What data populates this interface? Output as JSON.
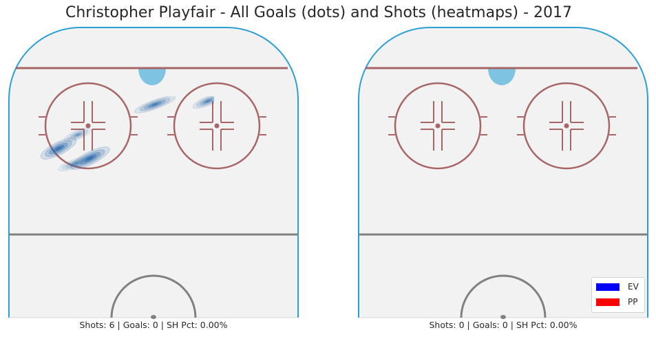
{
  "title": "Christopher Playfair - All Goals (dots) and Shots (heatmaps) - 2017",
  "panels": [
    {
      "caption": "Shots: 6 | Goals: 0 | SH Pct: 0.00%"
    },
    {
      "caption": "Shots: 0 | Goals: 0 | SH Pct: 0.00%"
    }
  ],
  "legend": [
    {
      "label": "EV",
      "color": "#0000ff"
    },
    {
      "label": "PP",
      "color": "#ff0000"
    }
  ],
  "colors": {
    "ice": "#f2f2f2",
    "boards": "#2a9fd6",
    "goal_line": "#a76565",
    "crease": "#7ec4e2",
    "faceoff": "#a76565",
    "center_line": "#808080",
    "heatmap": "#2a6db0"
  },
  "chart_data": {
    "type": "heatmap",
    "title": "Christopher Playfair - All Goals (dots) and Shots (heatmaps) - 2017",
    "panels": [
      {
        "shots": 6,
        "goals": 0,
        "sh_pct": "0.00%",
        "shot_clusters": [
          {
            "x": 72,
            "y": 216,
            "sx": 22,
            "sy": 7,
            "angle": -27,
            "intensity": 1.0
          },
          {
            "x": 118,
            "y": 230,
            "sx": 24,
            "sy": 7,
            "angle": -27,
            "intensity": 1.0
          },
          {
            "x": 212,
            "y": 152,
            "sx": 24,
            "sy": 5,
            "angle": -20,
            "intensity": 0.8
          },
          {
            "x": 289,
            "y": 147,
            "sx": 18,
            "sy": 5,
            "angle": -22,
            "intensity": 0.7
          },
          {
            "x": 100,
            "y": 196,
            "sx": 16,
            "sy": 5,
            "angle": -22,
            "intensity": 0.5
          },
          {
            "x": 96,
            "y": 238,
            "sx": 20,
            "sy": 5,
            "angle": -20,
            "intensity": 0.5
          }
        ],
        "goal_points": []
      },
      {
        "shots": 0,
        "goals": 0,
        "sh_pct": "0.00%",
        "shot_clusters": [],
        "goal_points": []
      }
    ],
    "legend": [
      "EV",
      "PP"
    ],
    "legend_position": "bottom-right"
  }
}
